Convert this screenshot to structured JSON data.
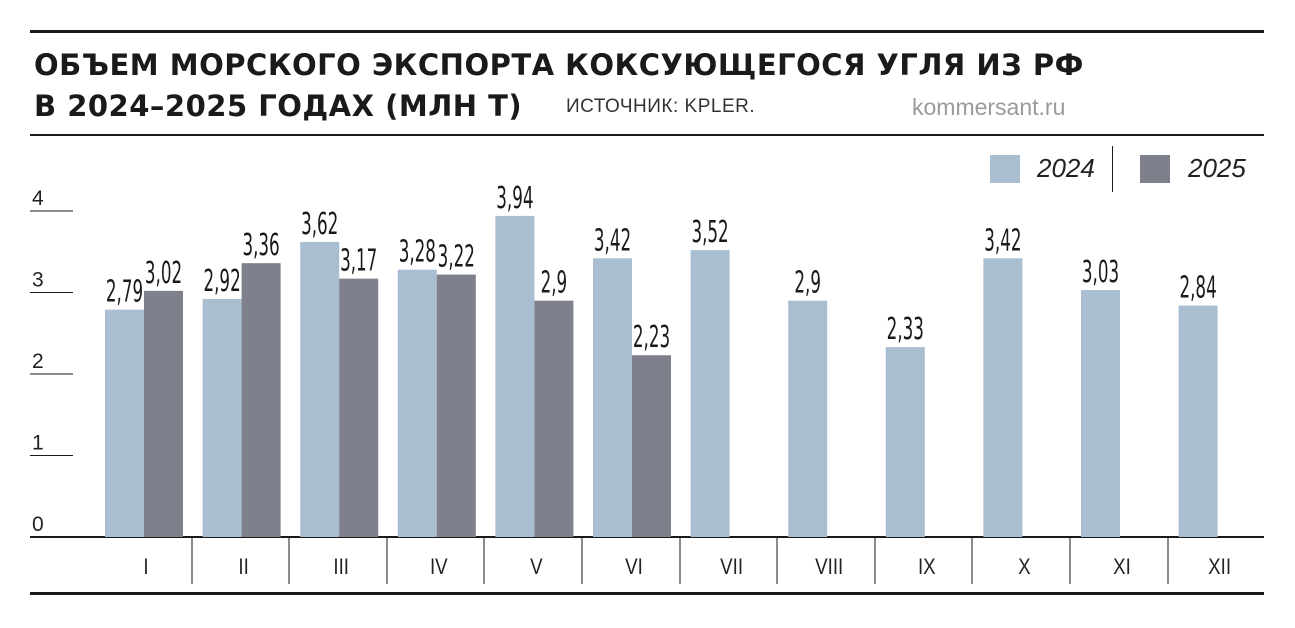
{
  "header": {
    "title_line1": "ОБЪЕМ МОРСКОГО ЭКСПОРТА КОКСУЮЩЕГОСЯ УГЛЯ ИЗ РФ",
    "title_line2": "В 2024–2025 ГОДАХ (МЛН Т)",
    "source": "ИСТОЧНИК: KPLER.",
    "brand": "kommersant.ru"
  },
  "colors": {
    "series_2024": "#a9bed0",
    "series_2025": "#7e808c",
    "axis": "#1a1a1a"
  },
  "chart_data": {
    "type": "bar",
    "title": "ОБЪЕМ МОРСКОГО ЭКСПОРТА КОКСУЮЩЕГОСЯ УГЛЯ ИЗ РФ В 2024–2025 ГОДАХ (МЛН Т)",
    "categories": [
      "I",
      "II",
      "III",
      "IV",
      "V",
      "VI",
      "VII",
      "VIII",
      "IX",
      "X",
      "XI",
      "XII"
    ],
    "series": [
      {
        "name": "2024",
        "values": [
          2.79,
          2.92,
          3.62,
          3.28,
          3.94,
          3.42,
          3.52,
          2.9,
          2.33,
          3.42,
          3.03,
          2.84
        ],
        "labels": [
          "2,79",
          "2,92",
          "3,62",
          "3,28",
          "3,94",
          "3,42",
          "3,52",
          "2,9",
          "2,33",
          "3,42",
          "3,03",
          "2,84"
        ]
      },
      {
        "name": "2025",
        "values": [
          3.02,
          3.36,
          3.17,
          3.22,
          2.9,
          2.23,
          null,
          null,
          null,
          null,
          null,
          null
        ],
        "labels": [
          "3,02",
          "3,36",
          "3,17",
          "3,22",
          "2,9",
          "2,23",
          null,
          null,
          null,
          null,
          null,
          null
        ]
      }
    ],
    "yticks": [
      0,
      1,
      2,
      3,
      4
    ],
    "ylim": [
      0,
      4.2
    ],
    "xlabel": "",
    "ylabel": "",
    "legend": "top-right",
    "grid": false
  }
}
